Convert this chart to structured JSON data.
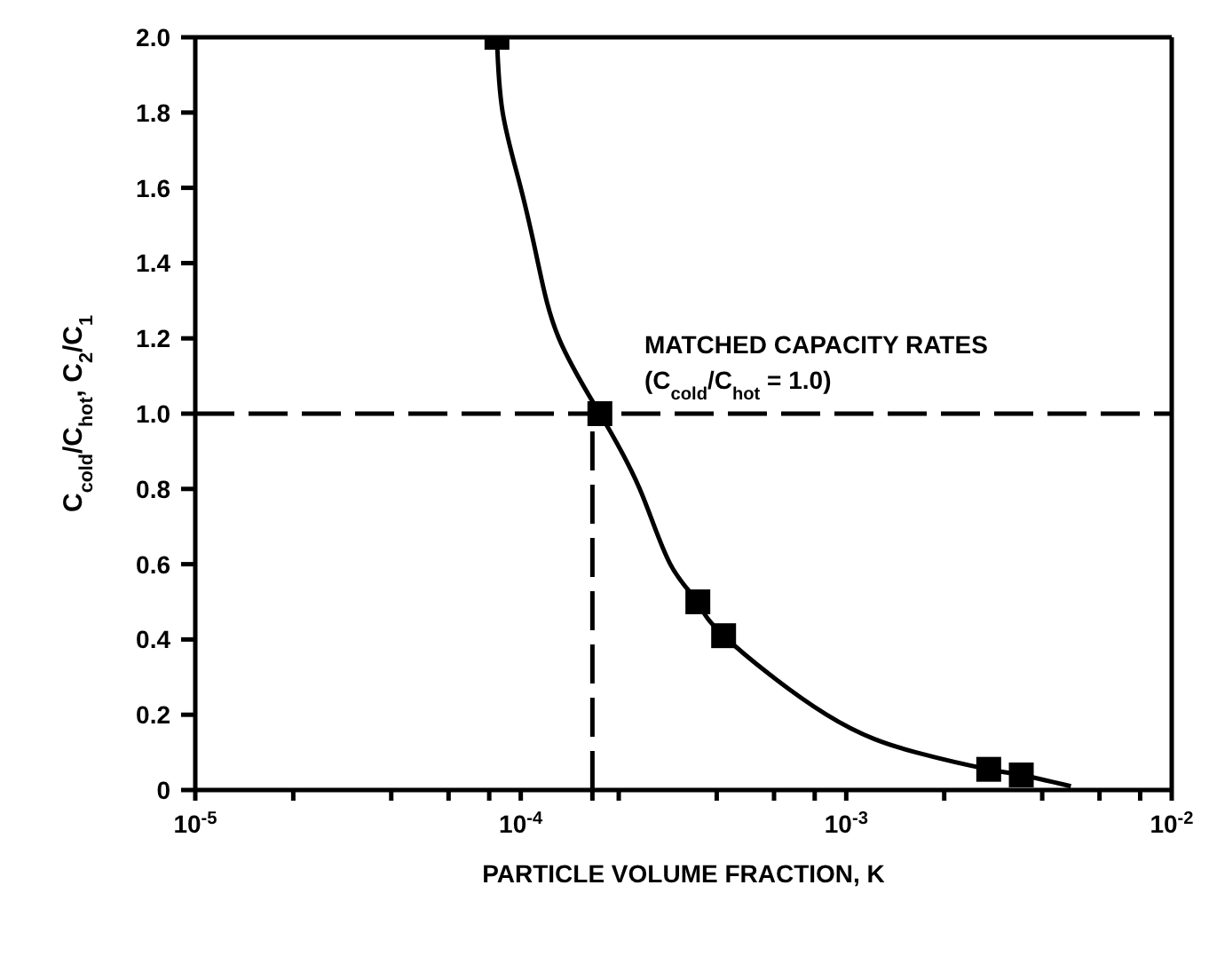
{
  "chart_data": {
    "type": "line",
    "xlabel": "PARTICLE VOLUME FRACTION, K",
    "ylabel": "C$_{cold}$/C$_{hot}$, C$_{2}$/C$_{1}$",
    "log": "x",
    "xlim": [
      1e-05,
      0.01
    ],
    "xticks": [
      {
        "value": 1e-05,
        "label": "10$^{-5}$"
      },
      {
        "value": 2e-05,
        "label": null
      },
      {
        "value": 4e-05,
        "label": null
      },
      {
        "value": 6e-05,
        "label": null
      },
      {
        "value": 8e-05,
        "label": null
      },
      {
        "value": 0.0001,
        "label": "10$^{-4}$"
      },
      {
        "value": 0.000166,
        "label": null
      },
      {
        "value": 0.0002,
        "label": null
      },
      {
        "value": 0.0004,
        "label": null
      },
      {
        "value": 0.0006,
        "label": null
      },
      {
        "value": 0.0008,
        "label": null
      },
      {
        "value": 0.001,
        "label": "10$^{-3}$"
      },
      {
        "value": 0.002,
        "label": null
      },
      {
        "value": 0.004,
        "label": null
      },
      {
        "value": 0.006,
        "label": null
      },
      {
        "value": 0.008,
        "label": null
      },
      {
        "value": 0.01,
        "label": "10$^{-2}$"
      }
    ],
    "ylim": [
      0,
      2.0
    ],
    "yticks": [
      {
        "value": 0,
        "label": "0"
      },
      {
        "value": 0.2,
        "label": "0.2"
      },
      {
        "value": 0.4,
        "label": "0.4"
      },
      {
        "value": 0.6,
        "label": "0.6"
      },
      {
        "value": 0.8,
        "label": "0.8"
      },
      {
        "value": 1.0,
        "label": "1.0"
      },
      {
        "value": 1.2,
        "label": "1.2"
      },
      {
        "value": 1.4,
        "label": "1.4"
      },
      {
        "value": 1.6,
        "label": "1.6"
      },
      {
        "value": 1.8,
        "label": "1.8"
      },
      {
        "value": 2.0,
        "label": "2.0"
      }
    ],
    "series": [
      {
        "type": "line",
        "color": "#000000",
        "marker": "none",
        "line_style": "solid",
        "x": [
          8.45e-05,
          8.8e-05,
          0.0001,
          0.000113,
          0.000131,
          0.000175,
          0.000232,
          0.000288,
          0.00035,
          0.00042,
          0.00087,
          0.00164,
          0.00274,
          0.00345,
          0.0049
        ],
        "values": [
          2.0,
          1.8,
          1.6,
          1.4,
          1.2,
          1.0,
          0.8,
          0.6,
          0.5,
          0.41,
          0.2,
          0.1,
          0.055,
          0.04,
          0.01
        ]
      },
      {
        "type": "scatter",
        "color": "#000000",
        "marker": "square",
        "x": [
          8.45e-05,
          0.000175,
          0.00035,
          0.00042,
          0.00274,
          0.00345
        ],
        "values": [
          2.0,
          1.0,
          0.5,
          0.41,
          0.055,
          0.04
        ]
      },
      {
        "type": "line",
        "color": "#000000",
        "marker": "none",
        "line_style": "dashed",
        "x": [
          0.000166,
          0.000166
        ],
        "values": [
          0,
          1.0
        ]
      }
    ],
    "ref_lines": [
      {
        "axis": "y",
        "value": 1.0,
        "label": "MATCHED CAPACITY RATES\n(C$_{cold}$/C$_{hot}$ = 1.0)",
        "line_style": "dashed",
        "color": "#000000"
      }
    ]
  }
}
